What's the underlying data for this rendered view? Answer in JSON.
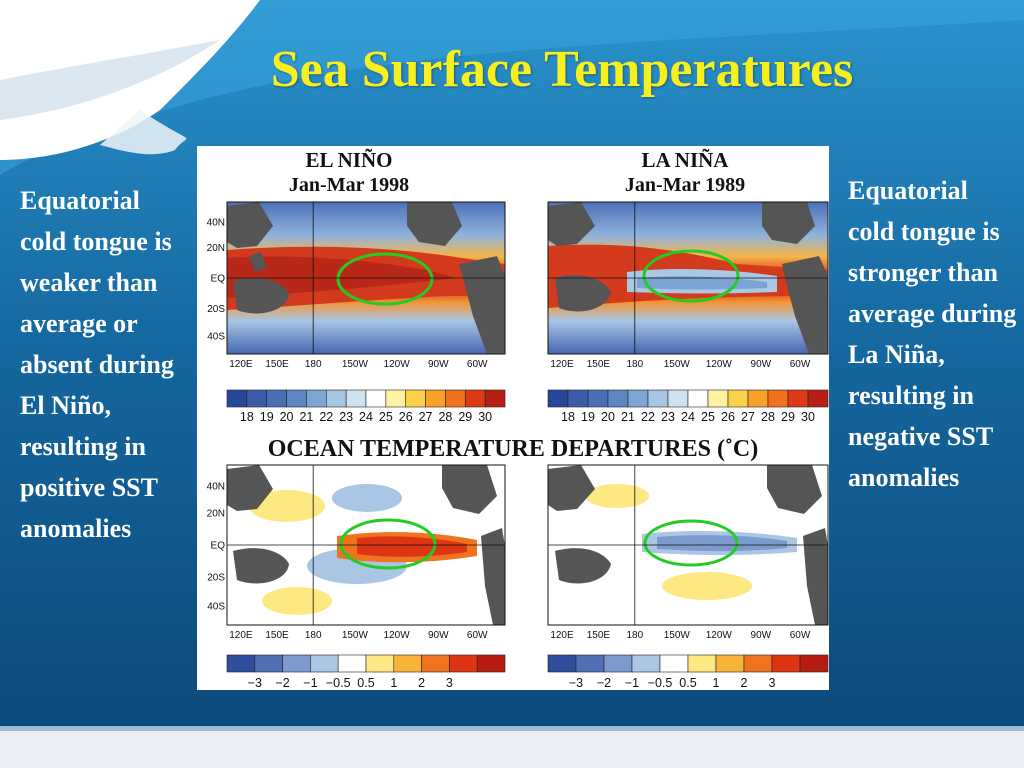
{
  "slide": {
    "title": "Sea Surface Temperatures",
    "left_text": "Equatorial cold tongue is weaker than average or absent during El Niño, resulting in positive SST anomalies",
    "right_text": "Equatorial cold tongue is stronger than average during La Niña, resulting in negative SST anomalies",
    "colors": {
      "background": "#0c4f82",
      "title": "#f7ef1e",
      "body_text": "#ffffff",
      "highlight_ellipse": "#22cc22"
    }
  },
  "figure": {
    "section_title": "OCEAN TEMPERATURE DEPARTURES (˚C)",
    "lat_ticks": [
      "40N",
      "20N",
      "EQ",
      "20S",
      "40S"
    ],
    "lon_ticks": [
      "120E",
      "150E",
      "180",
      "150W",
      "120W",
      "90W",
      "60W"
    ],
    "top_colorbar": {
      "colors": [
        "#27479b",
        "#3a5da8",
        "#4a6fb5",
        "#5d86c3",
        "#7ea6d3",
        "#a6c6e3",
        "#cfe2f0",
        "#ffffff",
        "#fff3a0",
        "#fdd049",
        "#f9a12a",
        "#f0721c",
        "#df3a17",
        "#b51f14"
      ],
      "labels": [
        "18",
        "19",
        "20",
        "21",
        "22",
        "23",
        "24",
        "25",
        "26",
        "27",
        "28",
        "29",
        "30"
      ]
    },
    "bottom_colorbar": {
      "colors": [
        "#2f4f9e",
        "#4f70b5",
        "#7c9bcd",
        "#a9c6e4",
        "#ffffff",
        "#fde882",
        "#f8b339",
        "#f07320",
        "#dd3414",
        "#b71c12"
      ],
      "labels": [
        "−3",
        "−2",
        "−1",
        "−0.5",
        "0.5",
        "1",
        "2",
        "3"
      ]
    },
    "panels": [
      {
        "id": "el-nino-sst",
        "title": "EL NIÑO",
        "period": "Jan-Mar 1998"
      },
      {
        "id": "la-nina-sst",
        "title": "LA NIÑA",
        "period": "Jan-Mar 1989"
      },
      {
        "id": "el-nino-anomaly"
      },
      {
        "id": "la-nina-anomaly"
      }
    ]
  }
}
